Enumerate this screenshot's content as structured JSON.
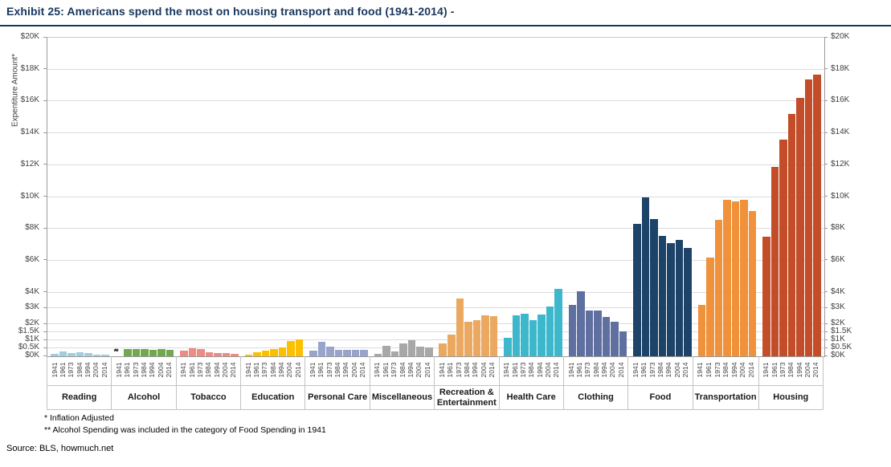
{
  "title": "Exhibit 25: Americans spend the most on housing transport and food (1941-2014) -",
  "footnotes": [
    "* Inflation Adjusted",
    "** Alcohol Spending was included in the category of Food Spending in 1941"
  ],
  "source": "Source: BLS, howmuch.net",
  "chart_data": {
    "type": "bar",
    "title": "Exhibit 25: Americans spend the most on housing transport and food (1941-2014) -",
    "ylabel": "Expentiture Amount*",
    "unit": "USD thousands, inflation adjusted",
    "ylim": [
      0,
      20
    ],
    "grid": true,
    "yticks": [
      0,
      0.5,
      1,
      1.5,
      2,
      3,
      4,
      6,
      8,
      10,
      12,
      14,
      16,
      18,
      20
    ],
    "ytick_labels": [
      "$0K",
      "$0.5K",
      "$1K",
      "$1.5K",
      "$2K",
      "$3K",
      "$4K",
      "$6K",
      "$8K",
      "$10K",
      "$12K",
      "$14K",
      "$16K",
      "$18K",
      "$20K"
    ],
    "x_years": [
      "1941",
      "1961",
      "1973",
      "1984",
      "1994",
      "2004",
      "2014"
    ],
    "missing_value_marker": "**",
    "categories": [
      {
        "name": "Reading",
        "color": "#9fcedc",
        "values": [
          0.15,
          0.28,
          0.2,
          0.23,
          0.19,
          0.1,
          0.08
        ]
      },
      {
        "name": "Alcohol",
        "color": "#71a850",
        "values": [
          null,
          0.47,
          0.45,
          0.46,
          0.38,
          0.46,
          0.42
        ]
      },
      {
        "name": "Tobacco",
        "color": "#ed8b84",
        "values": [
          0.33,
          0.52,
          0.43,
          0.25,
          0.18,
          0.18,
          0.16
        ]
      },
      {
        "name": "Education",
        "color": "#fcc000",
        "values": [
          0.08,
          0.25,
          0.35,
          0.45,
          0.55,
          0.95,
          1.05
        ]
      },
      {
        "name": "Personal Care",
        "color": "#98a4cc",
        "values": [
          0.35,
          0.9,
          0.62,
          0.42,
          0.39,
          0.39,
          0.42
        ]
      },
      {
        "name": "Miscellaneous",
        "color": "#a8a8a8",
        "values": [
          0.17,
          0.66,
          0.32,
          0.83,
          1.03,
          0.62,
          0.57
        ]
      },
      {
        "name": "Recreation & Entertainment",
        "color": "#eba860",
        "values": [
          0.79,
          1.35,
          3.65,
          2.15,
          2.27,
          2.55,
          2.52
        ]
      },
      {
        "name": "Health Care",
        "color": "#3db7cb",
        "values": [
          1.15,
          2.55,
          2.65,
          2.25,
          2.6,
          3.1,
          4.25
        ]
      },
      {
        "name": "Clothing",
        "color": "#5f6fa0",
        "values": [
          3.2,
          4.1,
          2.85,
          2.85,
          2.45,
          2.15,
          1.55
        ]
      },
      {
        "name": "Food",
        "color": "#1e4368",
        "values": [
          8.3,
          10.0,
          8.6,
          7.55,
          7.1,
          7.3,
          6.8
        ]
      },
      {
        "name": "Transportation",
        "color": "#f0913b",
        "values": [
          3.2,
          6.2,
          8.55,
          9.8,
          9.7,
          9.8,
          9.1
        ]
      },
      {
        "name": "Housing",
        "color": "#c24d28",
        "values": [
          7.5,
          11.9,
          13.6,
          15.2,
          16.2,
          17.4,
          17.7
        ]
      }
    ]
  }
}
